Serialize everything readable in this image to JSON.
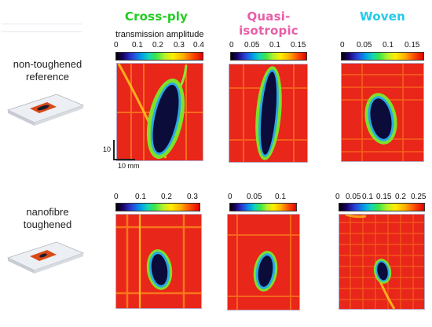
{
  "columns": [
    {
      "title": "Cross-ply",
      "color": "#22cc22"
    },
    {
      "title": "Quasi-isotropic",
      "color": "#e75ea8"
    },
    {
      "title": "Woven",
      "color": "#22cbe8"
    }
  ],
  "rows": [
    {
      "label_line1": "non-toughened",
      "label_line2": "reference"
    },
    {
      "label_line1": "nanofibre",
      "label_line2": "toughened"
    }
  ],
  "colorbar_title": "transmission amplitude",
  "colorbars": {
    "top": [
      {
        "ticks": [
          "0",
          "0.1",
          "0.2",
          "0.3",
          "0.4"
        ]
      },
      {
        "ticks": [
          "0",
          "0.05",
          "0.1",
          "0.15"
        ]
      },
      {
        "ticks": [
          "0",
          "0.05",
          "0.1",
          "0.15"
        ]
      }
    ],
    "bottom": [
      {
        "ticks": [
          "0",
          "0.1",
          "0.2",
          "0.3"
        ]
      },
      {
        "ticks": [
          "0",
          "0.05",
          "0.1"
        ]
      },
      {
        "ticks": [
          "0",
          "0.05",
          "0.1",
          "0.15",
          "0.2",
          "0.25"
        ]
      }
    ]
  },
  "scale": {
    "vertical": "10",
    "horizontal": "10 mm"
  },
  "colors": {
    "background_red": "#e8261a",
    "defect_dark": "#0b0c3a",
    "defect_edge": "#29a9e6",
    "halo_green": "#7fe02a"
  }
}
